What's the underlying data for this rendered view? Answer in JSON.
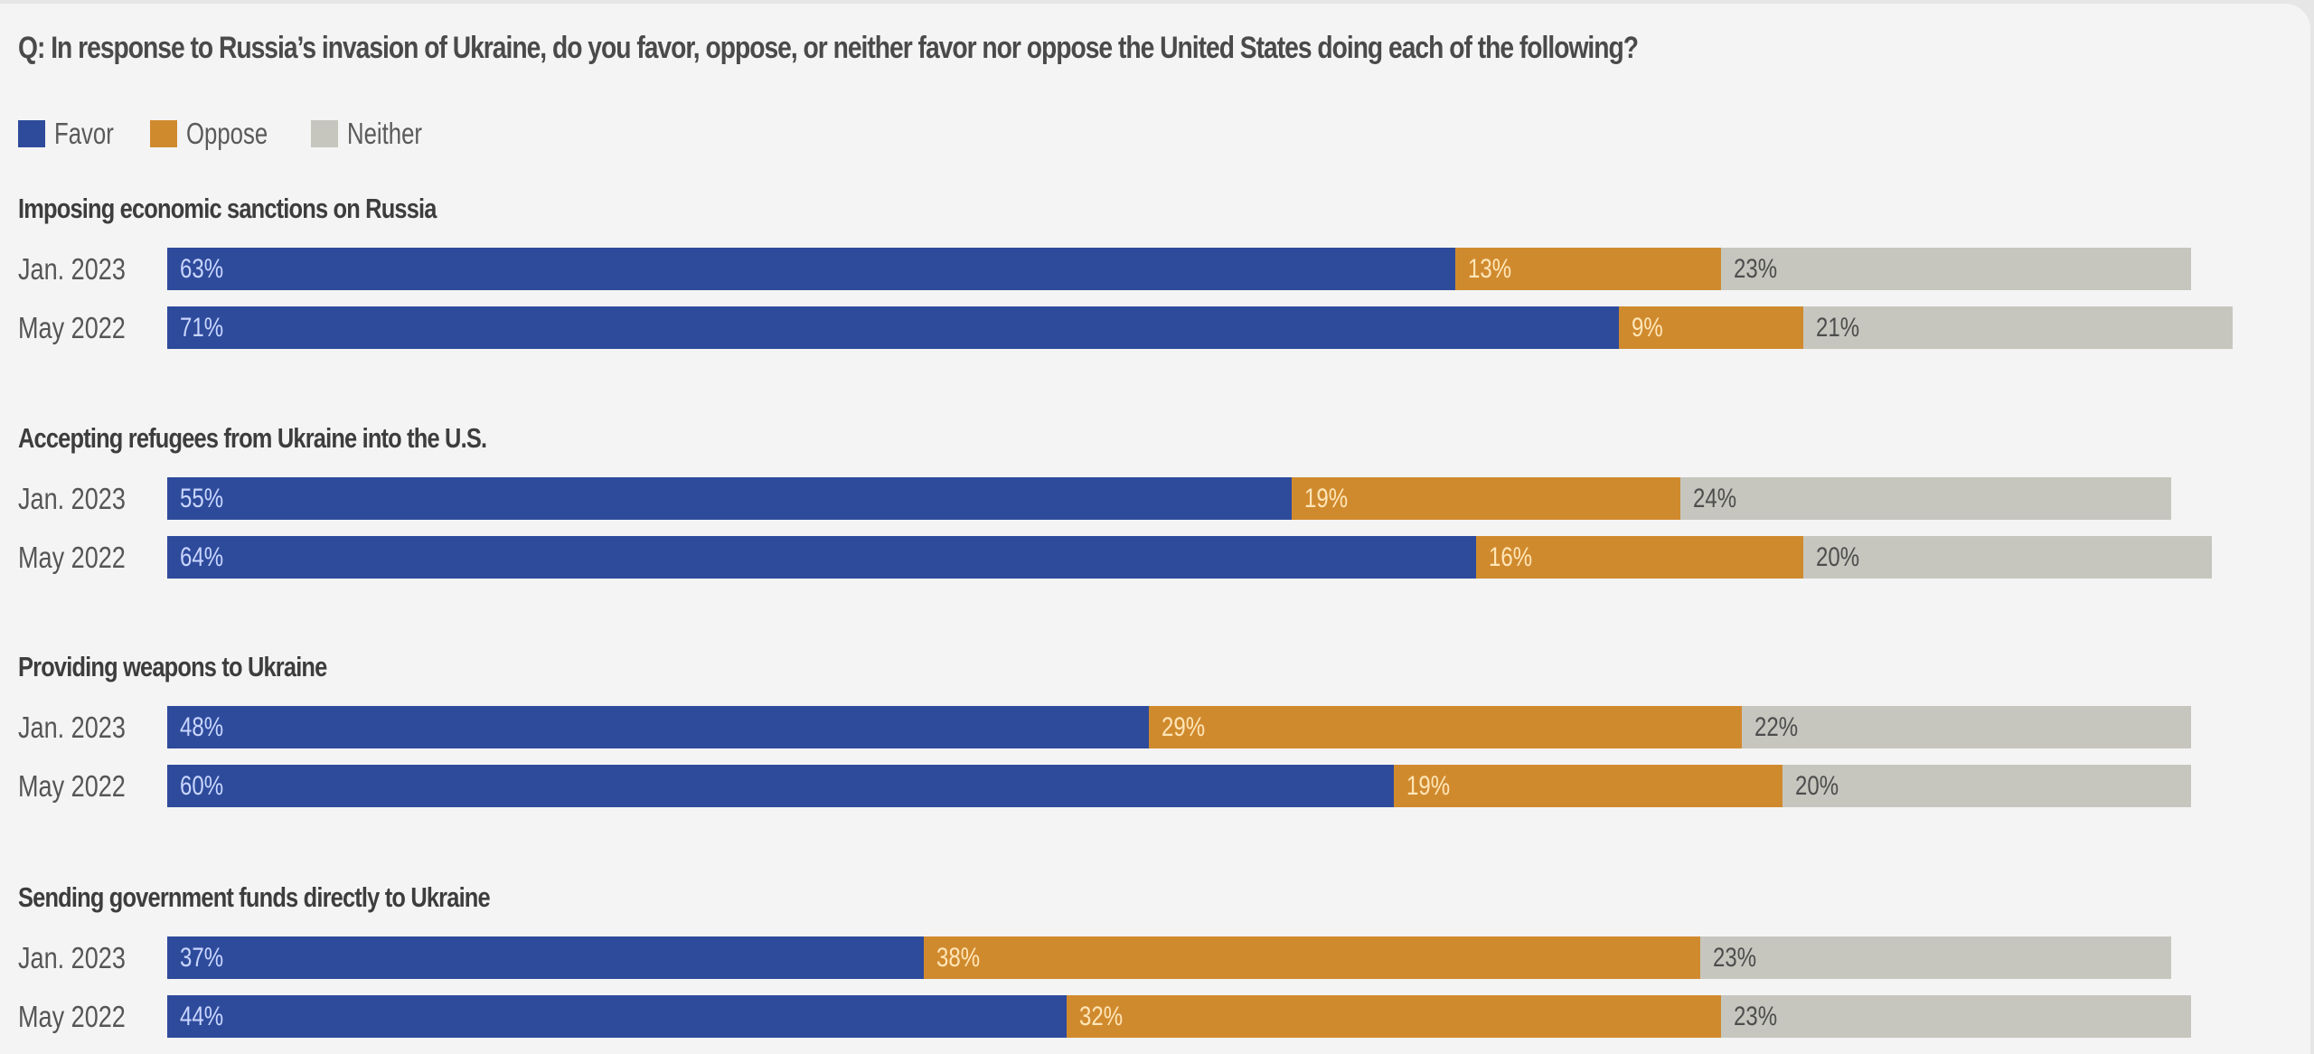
{
  "colors": {
    "favor": "#2e4b9b",
    "oppose": "#d08a2e",
    "neither": "#c6c6bf"
  },
  "title": "Q: In response to Russia’s invasion of Ukraine, do you favor, oppose, or neither favor nor oppose the United States doing each of the following?",
  "legend": [
    {
      "label": "Favor",
      "key": "favor"
    },
    {
      "label": "Oppose",
      "key": "oppose"
    },
    {
      "label": "Neither",
      "key": "neither"
    }
  ],
  "chart_data": {
    "type": "bar",
    "orientation": "horizontal",
    "stacked": true,
    "title": "Q: In response to Russia’s invasion of Ukraine, do you favor, oppose, or neither favor nor oppose the United States doing each of the following?",
    "legend": [
      "Favor",
      "Oppose",
      "Neither"
    ],
    "legend_position": "top-left",
    "unit": "%",
    "xlim": [
      0,
      100
    ],
    "groups": [
      {
        "category": "Imposing economic sanctions on Russia",
        "rows": [
          {
            "label": "Jan. 2023",
            "favor": 63,
            "oppose": 13,
            "neither": 23
          },
          {
            "label": "May 2022",
            "favor": 71,
            "oppose": 9,
            "neither": 21
          }
        ]
      },
      {
        "category": "Accepting refugees from Ukraine into the U.S.",
        "rows": [
          {
            "label": "Jan. 2023",
            "favor": 55,
            "oppose": 19,
            "neither": 24
          },
          {
            "label": "May 2022",
            "favor": 64,
            "oppose": 16,
            "neither": 20
          }
        ]
      },
      {
        "category": "Providing weapons to Ukraine",
        "rows": [
          {
            "label": "Jan. 2023",
            "favor": 48,
            "oppose": 29,
            "neither": 22
          },
          {
            "label": "May 2022",
            "favor": 60,
            "oppose": 19,
            "neither": 20
          }
        ]
      },
      {
        "category": "Sending government funds directly to Ukraine",
        "rows": [
          {
            "label": "Jan. 2023",
            "favor": 37,
            "oppose": 38,
            "neither": 23
          },
          {
            "label": "May 2022",
            "favor": 44,
            "oppose": 32,
            "neither": 23
          }
        ]
      }
    ]
  }
}
